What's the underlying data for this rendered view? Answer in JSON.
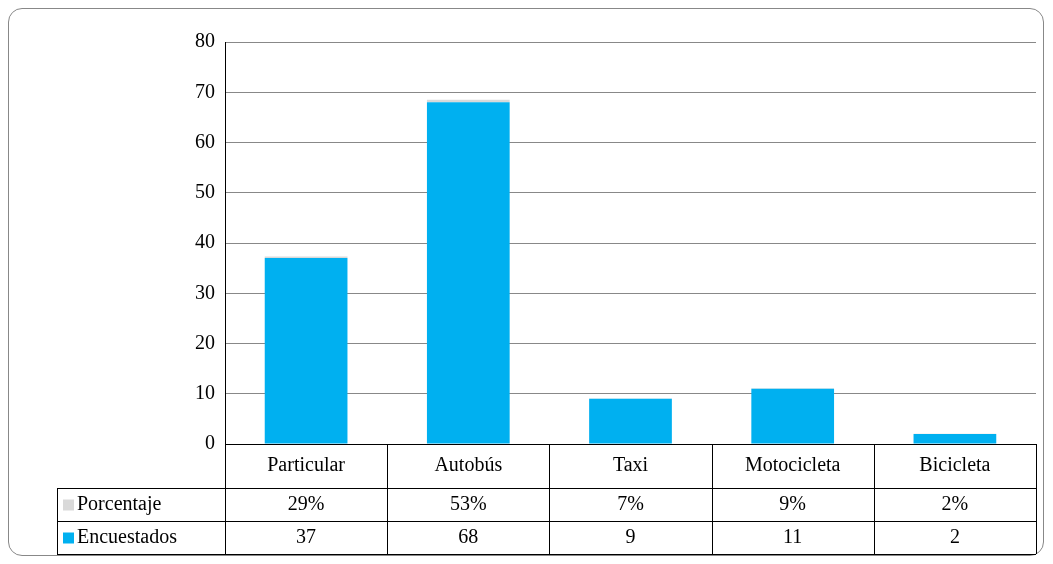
{
  "chart_data": {
    "type": "bar",
    "stacked": true,
    "categories": [
      "Particular",
      "Autobús",
      "Taxi",
      "Motocicleta",
      "Bicicleta"
    ],
    "series": [
      {
        "name": "Encuestados",
        "color": "#00b0f0",
        "values": [
          37,
          68,
          9,
          11,
          2
        ],
        "value_labels": [
          "37",
          "68",
          "9",
          "11",
          "2"
        ]
      },
      {
        "name": "Porcentaje",
        "color": "#d9d9d9",
        "values": [
          0.29,
          0.53,
          0.07,
          0.09,
          0.02
        ],
        "value_labels": [
          "29%",
          "53%",
          "7%",
          "9%",
          "2%"
        ]
      }
    ],
    "ylim": [
      0,
      80
    ],
    "yticks": [
      0,
      10,
      20,
      30,
      40,
      50,
      60,
      70,
      80
    ],
    "grid": "y",
    "legend": "bottom left"
  }
}
